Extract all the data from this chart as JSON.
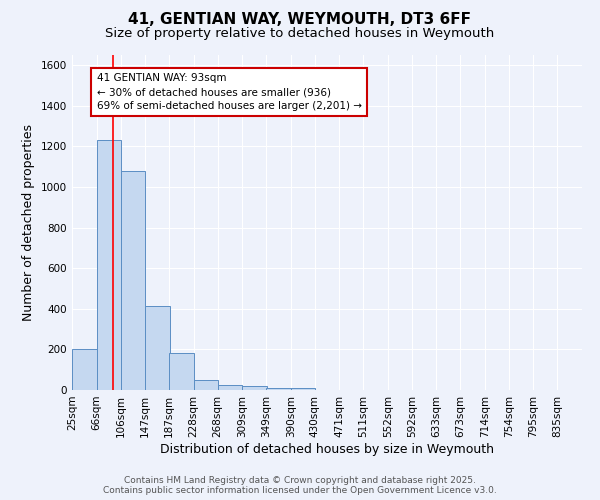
{
  "title": "41, GENTIAN WAY, WEYMOUTH, DT3 6FF",
  "subtitle": "Size of property relative to detached houses in Weymouth",
  "xlabel": "Distribution of detached houses by size in Weymouth",
  "ylabel": "Number of detached properties",
  "bar_edges": [
    25,
    66,
    106,
    147,
    187,
    228,
    268,
    309,
    349,
    390,
    430,
    471,
    511,
    552,
    592,
    633,
    673,
    714,
    754,
    795,
    835
  ],
  "bar_heights": [
    200,
    1230,
    1080,
    415,
    180,
    50,
    25,
    18,
    10,
    8,
    0,
    0,
    0,
    0,
    0,
    0,
    0,
    0,
    0,
    0
  ],
  "bar_color": "#c5d8f0",
  "bar_edge_color": "#5b8ec4",
  "background_color": "#eef2fb",
  "grid_color": "#ffffff",
  "red_line_x": 93,
  "annotation_text": "41 GENTIAN WAY: 93sqm\n← 30% of detached houses are smaller (936)\n69% of semi-detached houses are larger (2,201) →",
  "annotation_box_color": "#ffffff",
  "annotation_box_edge": "#cc0000",
  "ylim": [
    0,
    1650
  ],
  "yticks": [
    0,
    200,
    400,
    600,
    800,
    1000,
    1200,
    1400,
    1600
  ],
  "xtick_labels": [
    "25sqm",
    "66sqm",
    "106sqm",
    "147sqm",
    "187sqm",
    "228sqm",
    "268sqm",
    "309sqm",
    "349sqm",
    "390sqm",
    "430sqm",
    "471sqm",
    "511sqm",
    "552sqm",
    "592sqm",
    "633sqm",
    "673sqm",
    "714sqm",
    "754sqm",
    "795sqm",
    "835sqm"
  ],
  "footer_line1": "Contains HM Land Registry data © Crown copyright and database right 2025.",
  "footer_line2": "Contains public sector information licensed under the Open Government Licence v3.0.",
  "title_fontsize": 11,
  "subtitle_fontsize": 9.5,
  "axis_label_fontsize": 9,
  "tick_fontsize": 7.5,
  "annotation_fontsize": 7.5,
  "footer_fontsize": 6.5
}
